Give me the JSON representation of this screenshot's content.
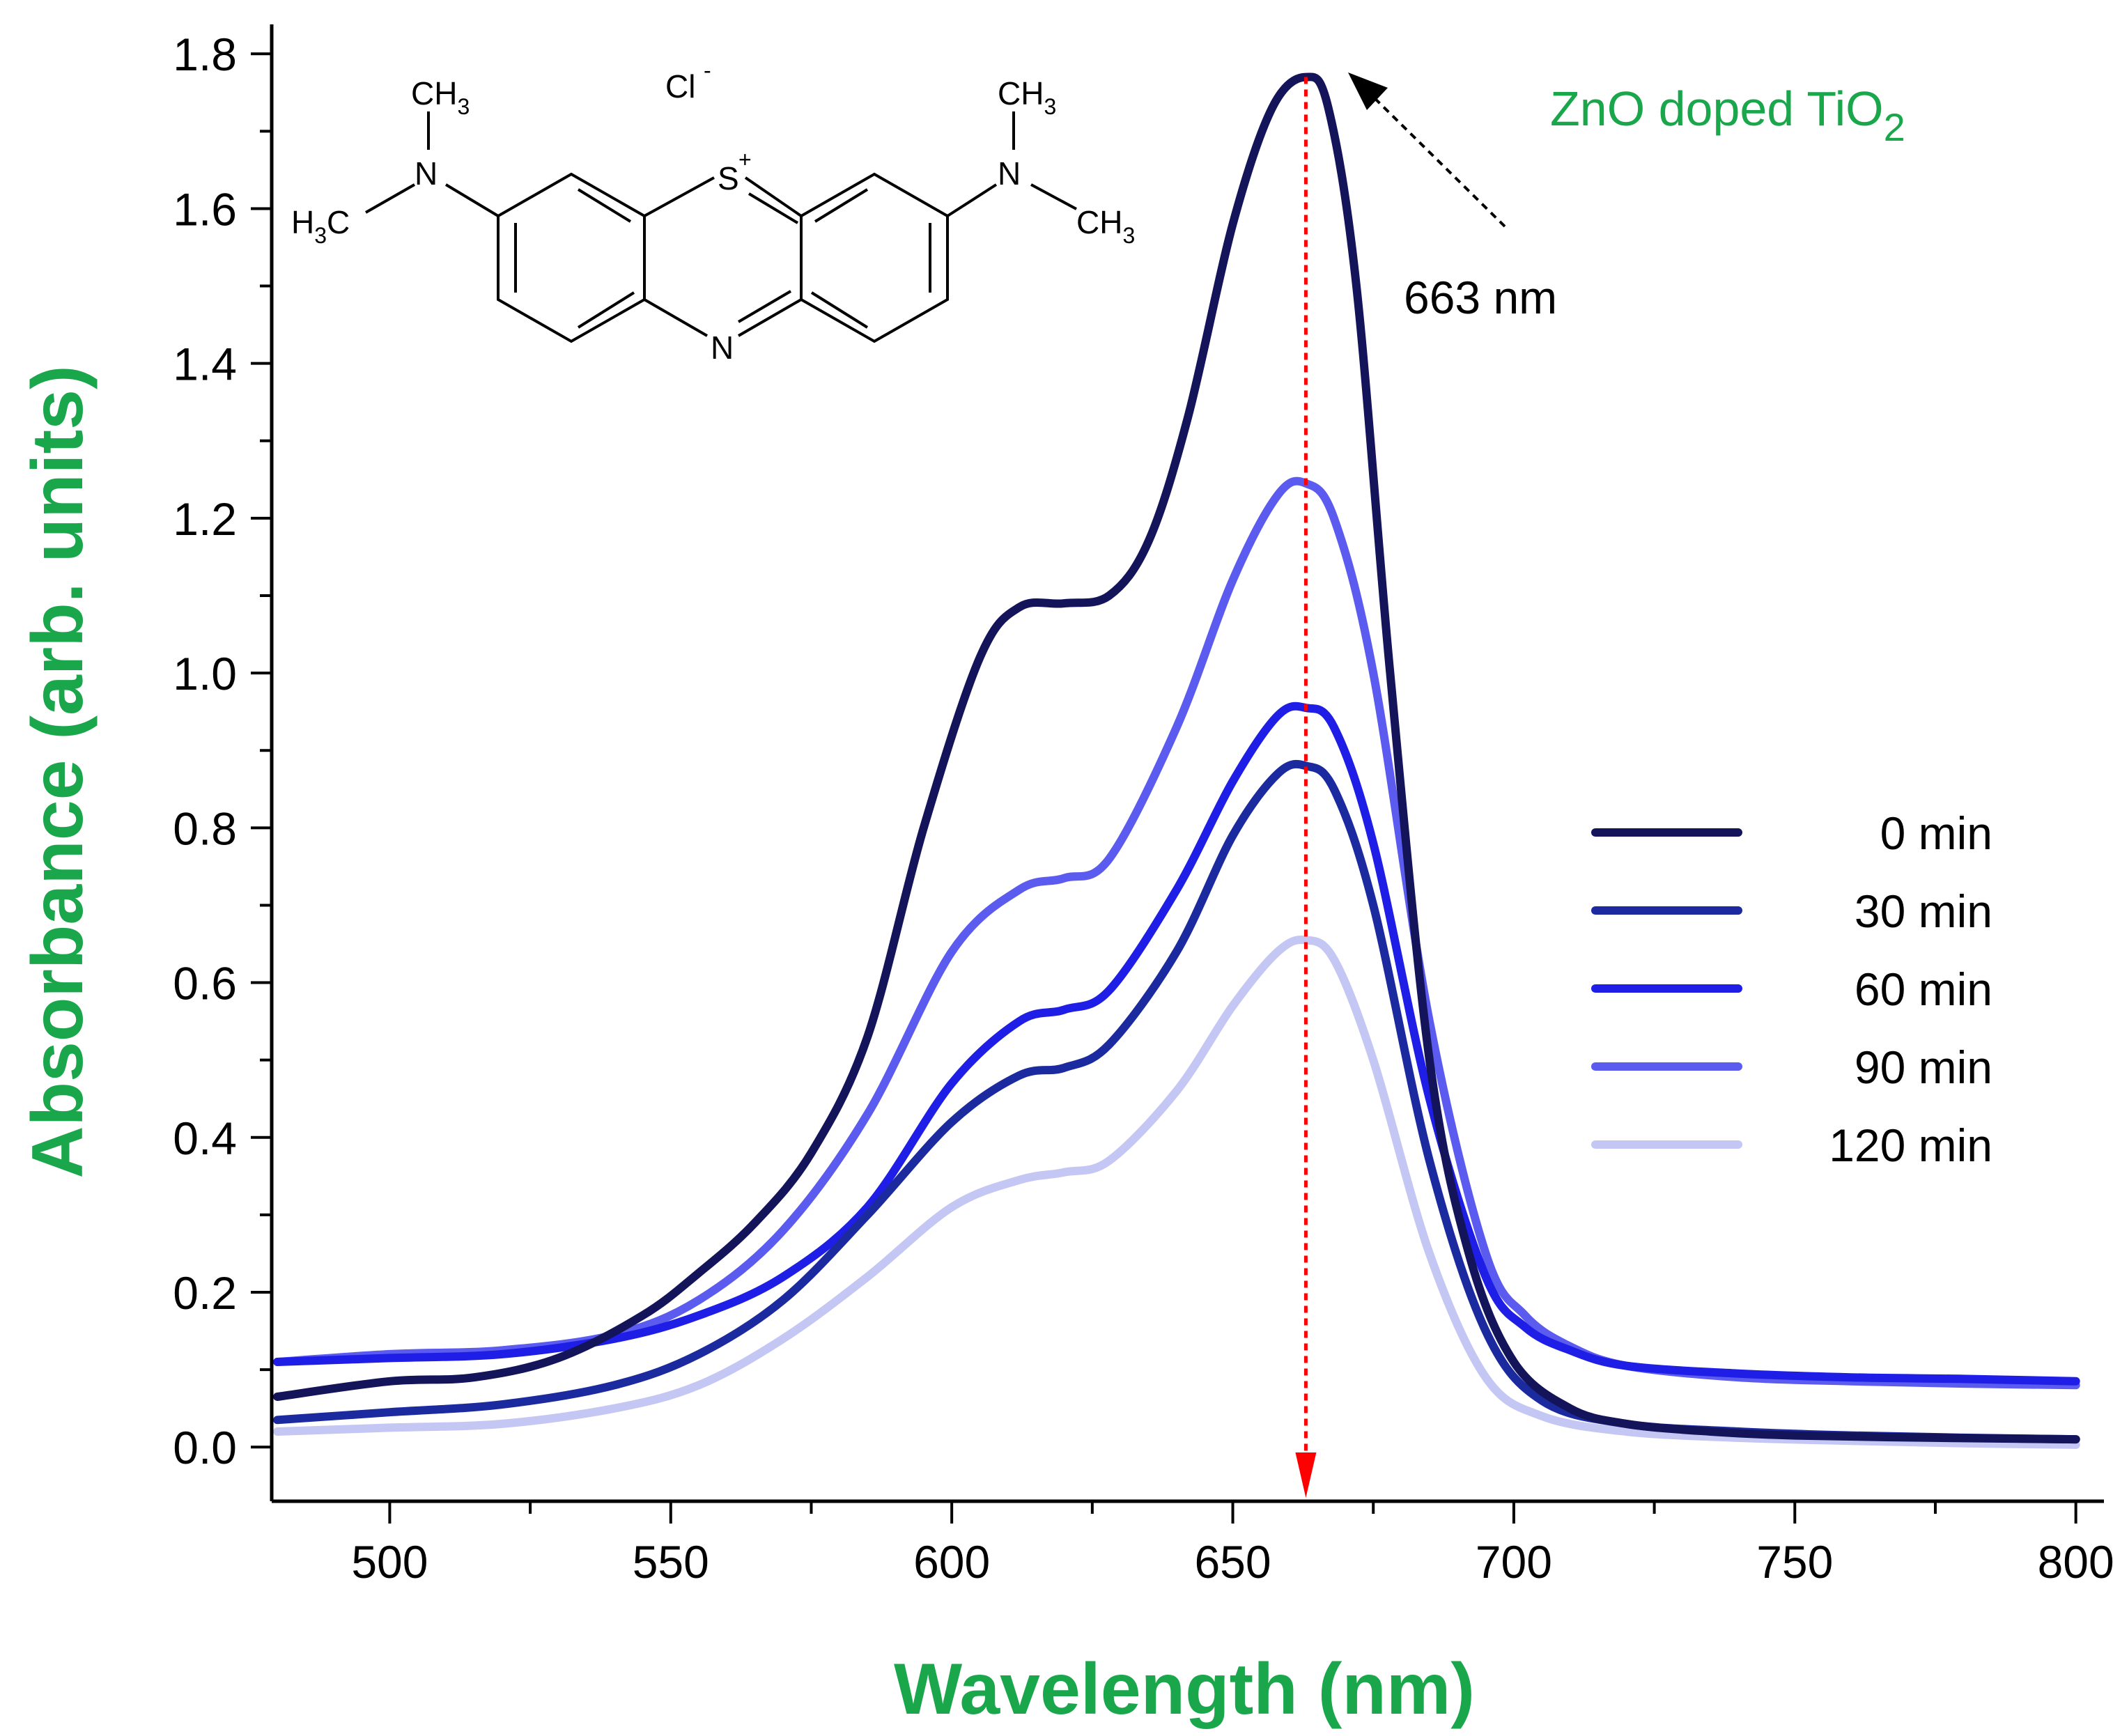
{
  "chart_data": {
    "type": "line",
    "xlabel": "Wavelength (nm)",
    "ylabel": "Absorbance (arb. units)",
    "xlim": [
      479,
      805
    ],
    "ylim": [
      -0.07,
      1.82
    ],
    "xticks": [
      500,
      550,
      600,
      650,
      700,
      750,
      800
    ],
    "xtick_labels": [
      "500",
      "550",
      "600",
      "650",
      "700",
      "750",
      "800"
    ],
    "yticks": [
      0.0,
      0.2,
      0.4,
      0.6,
      0.8,
      1.0,
      1.2,
      1.4,
      1.6,
      1.8
    ],
    "ytick_labels": [
      "0.0",
      "0.2",
      "0.4",
      "0.6",
      "0.8",
      "1.0",
      "1.2",
      "1.4",
      "1.6",
      "1.8"
    ],
    "grid": false,
    "legend_position": "right",
    "series": [
      {
        "name": "0 min",
        "color": "#14145a",
        "x": [
          480,
          500,
          515,
          530,
          545,
          555,
          565,
          575,
          585,
          595,
          605,
          612,
          620,
          628,
          635,
          642,
          650,
          657,
          663,
          667,
          672,
          678,
          685,
          692,
          700,
          710,
          720,
          735,
          750,
          775,
          800
        ],
        "y": [
          0.065,
          0.085,
          0.09,
          0.115,
          0.17,
          0.225,
          0.29,
          0.38,
          0.53,
          0.8,
          1.02,
          1.085,
          1.09,
          1.1,
          1.17,
          1.33,
          1.58,
          1.73,
          1.77,
          1.73,
          1.5,
          1.0,
          0.5,
          0.25,
          0.11,
          0.05,
          0.03,
          0.02,
          0.015,
          0.012,
          0.01
        ]
      },
      {
        "name": "30 min",
        "color": "#1c2aa0",
        "x": [
          480,
          500,
          520,
          540,
          555,
          570,
          585,
          600,
          612,
          620,
          628,
          640,
          650,
          658,
          663,
          668,
          675,
          685,
          695,
          705,
          720,
          740,
          760,
          780,
          800
        ],
        "y": [
          0.035,
          0.045,
          0.055,
          0.08,
          0.12,
          0.19,
          0.3,
          0.42,
          0.48,
          0.49,
          0.52,
          0.64,
          0.79,
          0.87,
          0.88,
          0.85,
          0.7,
          0.37,
          0.15,
          0.06,
          0.03,
          0.02,
          0.015,
          0.012,
          0.01
        ]
      },
      {
        "name": "60 min",
        "color": "#1e1ee6",
        "x": [
          480,
          500,
          520,
          540,
          555,
          570,
          585,
          600,
          612,
          620,
          628,
          640,
          650,
          658,
          663,
          668,
          675,
          685,
          695,
          702,
          710,
          720,
          740,
          760,
          780,
          800
        ],
        "y": [
          0.11,
          0.115,
          0.12,
          0.14,
          0.17,
          0.22,
          0.31,
          0.47,
          0.55,
          0.565,
          0.59,
          0.72,
          0.86,
          0.945,
          0.955,
          0.93,
          0.78,
          0.45,
          0.22,
          0.155,
          0.125,
          0.105,
          0.095,
          0.09,
          0.088,
          0.085
        ]
      },
      {
        "name": "90 min",
        "color": "#5b5bf0",
        "x": [
          480,
          500,
          520,
          540,
          555,
          570,
          585,
          600,
          612,
          620,
          628,
          640,
          650,
          658,
          663,
          668,
          675,
          685,
          695,
          702,
          710,
          720,
          740,
          760,
          780,
          800
        ],
        "y": [
          0.11,
          0.12,
          0.125,
          0.145,
          0.19,
          0.28,
          0.43,
          0.64,
          0.72,
          0.735,
          0.76,
          0.93,
          1.12,
          1.23,
          1.245,
          1.2,
          1.0,
          0.55,
          0.25,
          0.17,
          0.13,
          0.105,
          0.09,
          0.085,
          0.082,
          0.08
        ]
      },
      {
        "name": "120 min",
        "color": "#c4c6f4",
        "x": [
          480,
          500,
          520,
          540,
          555,
          570,
          585,
          600,
          612,
          620,
          628,
          640,
          650,
          658,
          663,
          668,
          675,
          685,
          695,
          705,
          720,
          740,
          760,
          780,
          800
        ],
        "y": [
          0.02,
          0.025,
          0.03,
          0.05,
          0.08,
          0.14,
          0.22,
          0.31,
          0.345,
          0.355,
          0.37,
          0.46,
          0.57,
          0.64,
          0.655,
          0.63,
          0.5,
          0.25,
          0.09,
          0.04,
          0.02,
          0.012,
          0.008,
          0.005,
          0.003
        ]
      }
    ],
    "annotations": {
      "peak_label": "663 nm",
      "peak_x": 663,
      "sample_label_main": "ZnO doped TiO",
      "sample_label_sub": "2"
    }
  },
  "molecule": {
    "chloride": "Cl",
    "chloride_charge": "-",
    "sulfur": "S",
    "sulfur_charge": "+",
    "nitrogen_ring": "N",
    "nitrogen_left": "N",
    "nitrogen_right": "N",
    "methyl_top_left": "CH",
    "methyl_top_left_sub": "3",
    "methyl_left_h": "H",
    "methyl_left_sub": "3",
    "methyl_left_c": "C",
    "methyl_top_right": "CH",
    "methyl_top_right_sub": "3",
    "methyl_right": "CH",
    "methyl_right_sub": "3"
  },
  "colors": {
    "axis_title": "#1aa64b",
    "marker_line": "#ff0000"
  }
}
